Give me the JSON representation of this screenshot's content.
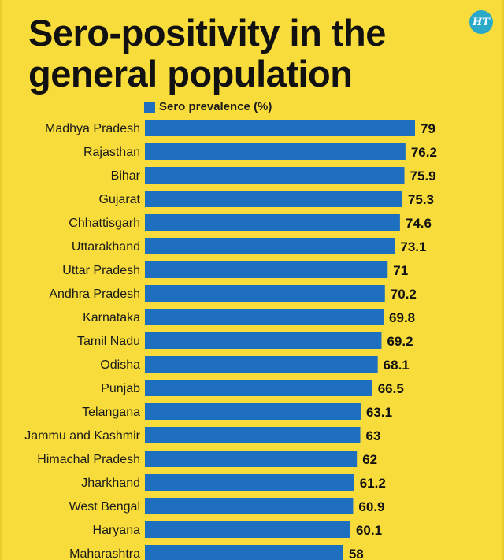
{
  "title_line1": "Sero-positivity in the",
  "title_line2": "general population",
  "logo_text": "HT",
  "colors": {
    "background": "#f7dc3b",
    "bar": "#1f6fc1",
    "text": "#111111",
    "logo": "#2aa9c9"
  },
  "chart_data": {
    "type": "bar",
    "orientation": "horizontal",
    "legend": "Sero prevalence (%)",
    "legend_position": "top-left",
    "categories": [
      "Madhya Pradesh",
      "Rajasthan",
      "Bihar",
      "Gujarat",
      "Chhattisgarh",
      "Uttarakhand",
      "Uttar Pradesh",
      "Andhra Pradesh",
      "Karnataka",
      "Tamil Nadu",
      "Odisha",
      "Punjab",
      "Telangana",
      "Jammu and Kashmir",
      "Himachal Pradesh",
      "Jharkhand",
      "West Bengal",
      "Haryana",
      "Maharashtra"
    ],
    "series": [
      {
        "name": "Sero prevalence (%)",
        "values": [
          79,
          76.2,
          75.9,
          75.3,
          74.6,
          73.1,
          71,
          70.2,
          69.8,
          69.2,
          68.1,
          66.5,
          63.1,
          63,
          62,
          61.2,
          60.9,
          60.1,
          58
        ]
      }
    ],
    "value_labels": [
      "79",
      "76.2",
      "75.9",
      "75.3",
      "74.6",
      "73.1",
      "71",
      "70.2",
      "69.8",
      "69.2",
      "68.1",
      "66.5",
      "63.1",
      "63",
      "62",
      "61.2",
      "60.9",
      "60.1",
      "58"
    ],
    "xlim": [
      0,
      79
    ],
    "grid": false
  }
}
